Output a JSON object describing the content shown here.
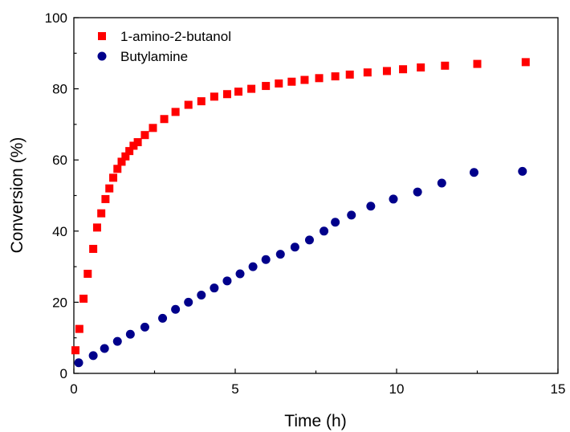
{
  "chart_data": {
    "type": "scatter",
    "title": "",
    "xlabel": "Time (h)",
    "ylabel": "Conversion (%)",
    "xlim": [
      0,
      15
    ],
    "ylim": [
      0,
      100
    ],
    "xticks": [
      0,
      5,
      10,
      15
    ],
    "yticks": [
      0,
      20,
      40,
      60,
      80,
      100
    ],
    "grid": false,
    "legend_position": "top-left",
    "series": [
      {
        "name": "1-amino-2-butanol",
        "marker": "square",
        "color": "#ff0000",
        "x": [
          0.05,
          0.17,
          0.3,
          0.43,
          0.6,
          0.72,
          0.85,
          0.98,
          1.1,
          1.22,
          1.35,
          1.48,
          1.6,
          1.72,
          1.85,
          1.98,
          2.2,
          2.45,
          2.8,
          3.15,
          3.55,
          3.95,
          4.35,
          4.75,
          5.1,
          5.5,
          5.95,
          6.35,
          6.75,
          7.15,
          7.6,
          8.1,
          8.55,
          9.1,
          9.7,
          10.2,
          10.75,
          11.5,
          12.5,
          14.0
        ],
        "y": [
          6.5,
          12.5,
          21,
          28,
          35,
          41,
          45,
          49,
          52,
          55,
          57.5,
          59.5,
          61,
          62.5,
          64,
          65,
          67,
          69,
          71.5,
          73.5,
          75.5,
          76.5,
          77.8,
          78.5,
          79.2,
          80,
          80.8,
          81.5,
          82,
          82.5,
          83,
          83.5,
          84,
          84.6,
          85,
          85.5,
          86,
          86.5,
          87,
          87.5
        ]
      },
      {
        "name": "Butylamine",
        "marker": "circle",
        "color": "#00008b",
        "x": [
          0.15,
          0.6,
          0.95,
          1.35,
          1.75,
          2.2,
          2.75,
          3.15,
          3.55,
          3.95,
          4.35,
          4.75,
          5.15,
          5.55,
          5.95,
          6.4,
          6.85,
          7.3,
          7.75,
          8.1,
          8.6,
          9.2,
          9.9,
          10.65,
          11.4,
          12.4,
          13.9
        ],
        "y": [
          3,
          5,
          7,
          9,
          11,
          13,
          15.5,
          18,
          20,
          22,
          24,
          26,
          28,
          30,
          32,
          33.5,
          35.5,
          37.5,
          40,
          42.5,
          44.5,
          47,
          49,
          51,
          53.5,
          56.5,
          56.8
        ]
      }
    ]
  }
}
